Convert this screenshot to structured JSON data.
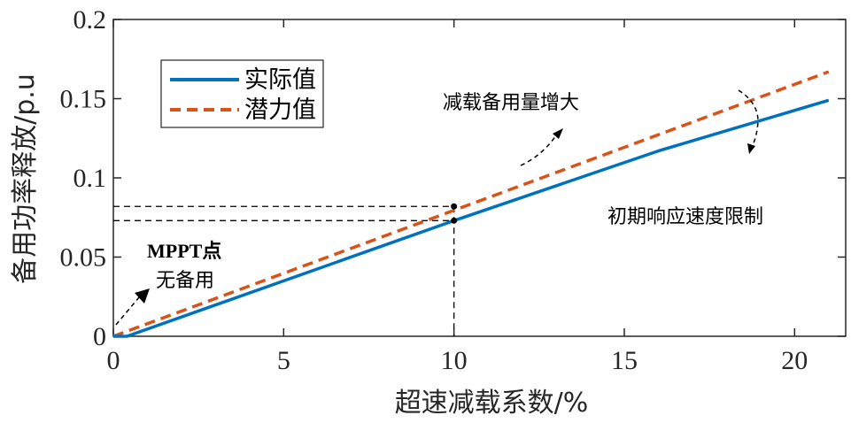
{
  "chart_data": {
    "type": "line",
    "title": "",
    "xlabel": "超速减载系数/%",
    "ylabel": "备用功率释放/p.u",
    "xlim": [
      0,
      21.5
    ],
    "ylim": [
      0,
      0.2
    ],
    "xticks": [
      0,
      5,
      10,
      15,
      20
    ],
    "yticks": [
      0,
      0.05,
      0.1,
      0.15,
      0.2
    ],
    "xtick_labels": [
      "0",
      "5",
      "10",
      "15",
      "20"
    ],
    "ytick_labels": [
      "0",
      "0.05",
      "0.1",
      "0.15",
      "0.2"
    ],
    "grid": false,
    "legend_position": "top-left",
    "series": [
      {
        "name": "实际值",
        "color": "#0072BD",
        "style": "solid",
        "x": [
          0,
          0.4,
          10,
          16,
          21
        ],
        "y": [
          0,
          0,
          0.073,
          0.117,
          0.149
        ]
      },
      {
        "name": "潜力值",
        "color": "#D95319",
        "style": "dashed",
        "x": [
          0,
          21
        ],
        "y": [
          0,
          0.167
        ]
      }
    ],
    "reference_points": [
      {
        "x": 10,
        "y": 0.073
      },
      {
        "x": 10,
        "y": 0.082
      }
    ],
    "annotations": [
      {
        "text": "MPPT点",
        "x": 1.0,
        "y": 0.052
      },
      {
        "text": "无备用",
        "x": 1.3,
        "y": 0.033
      },
      {
        "text": "减载备用量增大",
        "x": 9.9,
        "y": 0.146
      },
      {
        "text": "初期响应速度限制",
        "x": 14.6,
        "y": 0.073
      }
    ]
  }
}
